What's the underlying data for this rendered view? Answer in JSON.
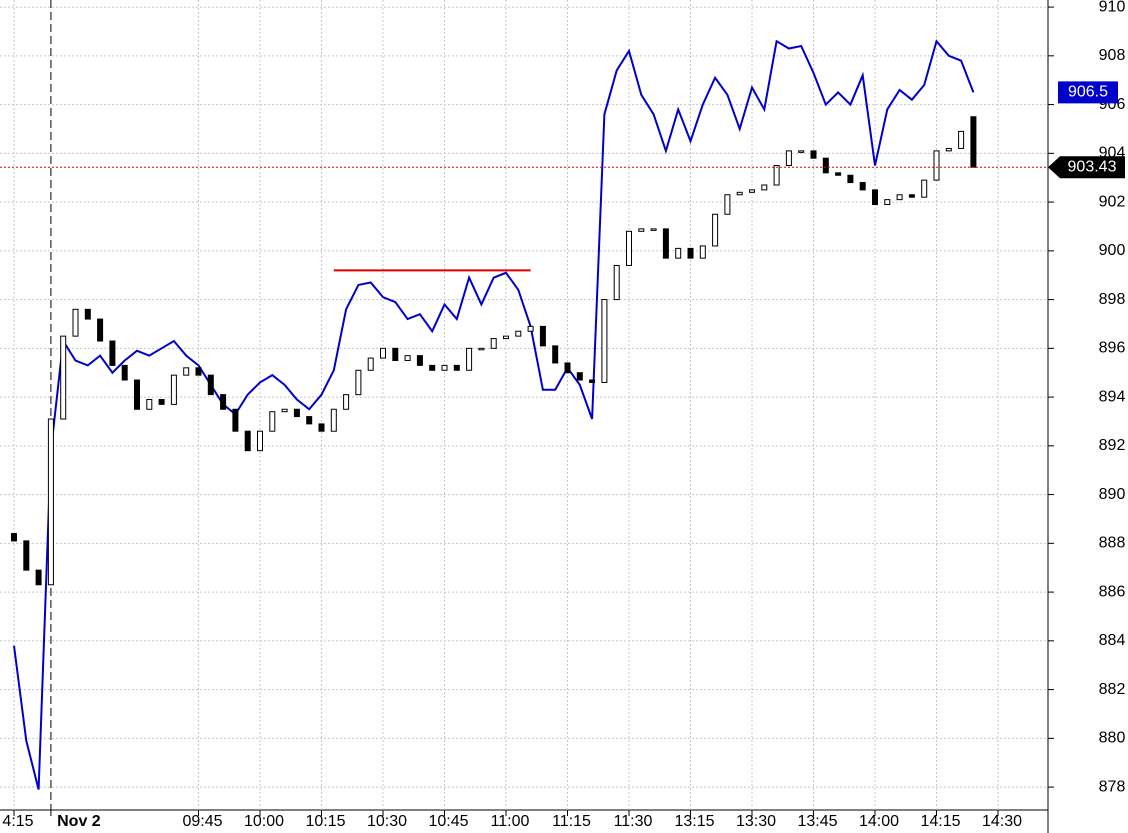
{
  "chart_data": {
    "type": "candlestick",
    "categories": [
      "4:15",
      null,
      null,
      "Nov 2",
      null,
      null,
      null,
      null,
      null,
      null,
      null,
      null,
      null,
      null,
      null,
      "09:45",
      null,
      null,
      null,
      null,
      "10:00",
      null,
      null,
      null,
      null,
      "10:15",
      null,
      null,
      null,
      null,
      "10:30",
      null,
      null,
      null,
      null,
      "10:45",
      null,
      null,
      null,
      null,
      "11:00",
      null,
      null,
      null,
      null,
      "11:15",
      null,
      null,
      null,
      null,
      "11:30",
      null,
      null,
      null,
      null,
      "13:15",
      null,
      null,
      null,
      null,
      "13:30",
      null,
      null,
      null,
      null,
      "13:45",
      null,
      null,
      null,
      null,
      "14:00",
      null,
      null,
      null,
      null,
      "14:15",
      null,
      null,
      null,
      null,
      "14:30"
    ],
    "ylim": [
      877.06,
      910.29
    ],
    "yticks": [
      878,
      880,
      882,
      884,
      886,
      888,
      890,
      892,
      894,
      896,
      898,
      900,
      902,
      904,
      906,
      908,
      910
    ],
    "grid": true,
    "session_start": 3,
    "series": [
      {
        "type": "line",
        "color": "#0000cc",
        "values": [
          883.8,
          879.9,
          877.9,
          891.8,
          896.3,
          895.5,
          895.3,
          895.7,
          895.0,
          895.5,
          895.9,
          895.7,
          896.0,
          896.3,
          895.7,
          895.3,
          894.5,
          893.7,
          893.3,
          894.1,
          894.6,
          894.9,
          894.5,
          893.9,
          893.5,
          894.1,
          895.1,
          897.6,
          898.6,
          898.7,
          898.1,
          897.9,
          897.2,
          897.4,
          896.7,
          897.8,
          897.2,
          898.9,
          897.8,
          898.9,
          899.1,
          898.4,
          896.9,
          894.3,
          894.3,
          895.2,
          894.5,
          893.1,
          905.6,
          907.4,
          908.2,
          906.4,
          905.6,
          904.1,
          905.8,
          904.5,
          906.0,
          907.1,
          906.4,
          905.0,
          906.7,
          905.8,
          908.6,
          908.3,
          908.4,
          907.3,
          906.0,
          906.5,
          906.0,
          907.2,
          903.5,
          905.8,
          906.6,
          906.2,
          906.8,
          908.6,
          908.0,
          907.8,
          906.5,
          null,
          null
        ]
      },
      {
        "type": "candlestick",
        "color": "#000000",
        "open": [
          888.4,
          888.1,
          886.9,
          886.3,
          893.1,
          896.5,
          897.6,
          897.2,
          896.3,
          895.3,
          894.7,
          893.5,
          893.9,
          893.7,
          894.9,
          895.2,
          894.9,
          894.1,
          893.5,
          892.6,
          891.8,
          892.6,
          893.4,
          893.5,
          893.2,
          892.9,
          892.6,
          893.5,
          894.1,
          895.1,
          895.6,
          896.0,
          895.5,
          895.7,
          895.3,
          895.1,
          895.3,
          895.1,
          896.0,
          896.0,
          896.4,
          896.5,
          896.7,
          896.9,
          896.1,
          895.4,
          895.0,
          894.7,
          894.6,
          898.0,
          899.4,
          900.8,
          900.9,
          900.9,
          899.7,
          900.1,
          899.7,
          900.2,
          901.5,
          902.3,
          902.4,
          902.5,
          902.7,
          903.5,
          904.1,
          904.1,
          903.8,
          903.2,
          903.1,
          902.8,
          902.5,
          901.9,
          902.1,
          902.3,
          902.2,
          902.9,
          904.1,
          904.2,
          905.5,
          null,
          null
        ],
        "close": [
          888.1,
          886.9,
          886.3,
          893.1,
          896.5,
          897.6,
          897.2,
          896.3,
          895.3,
          894.7,
          893.5,
          893.9,
          893.7,
          894.9,
          895.2,
          894.9,
          894.1,
          893.5,
          892.6,
          891.8,
          892.6,
          893.4,
          893.5,
          893.2,
          892.9,
          892.6,
          893.5,
          894.1,
          895.1,
          895.6,
          896.0,
          895.5,
          895.7,
          895.3,
          895.1,
          895.3,
          895.1,
          896.0,
          896.0,
          896.4,
          896.5,
          896.7,
          896.9,
          896.1,
          895.4,
          895.0,
          894.7,
          894.6,
          898.0,
          899.4,
          900.8,
          900.9,
          900.9,
          899.7,
          900.1,
          899.7,
          900.2,
          901.5,
          902.3,
          902.4,
          902.5,
          902.7,
          903.5,
          904.1,
          904.1,
          903.8,
          903.2,
          903.1,
          902.8,
          902.5,
          901.9,
          902.1,
          902.3,
          902.2,
          902.9,
          904.1,
          904.2,
          904.9,
          903.43,
          null,
          null
        ]
      }
    ],
    "resistance": {
      "value": 899.2,
      "from": 26,
      "to": 42,
      "color": "#e00000"
    }
  }
}
